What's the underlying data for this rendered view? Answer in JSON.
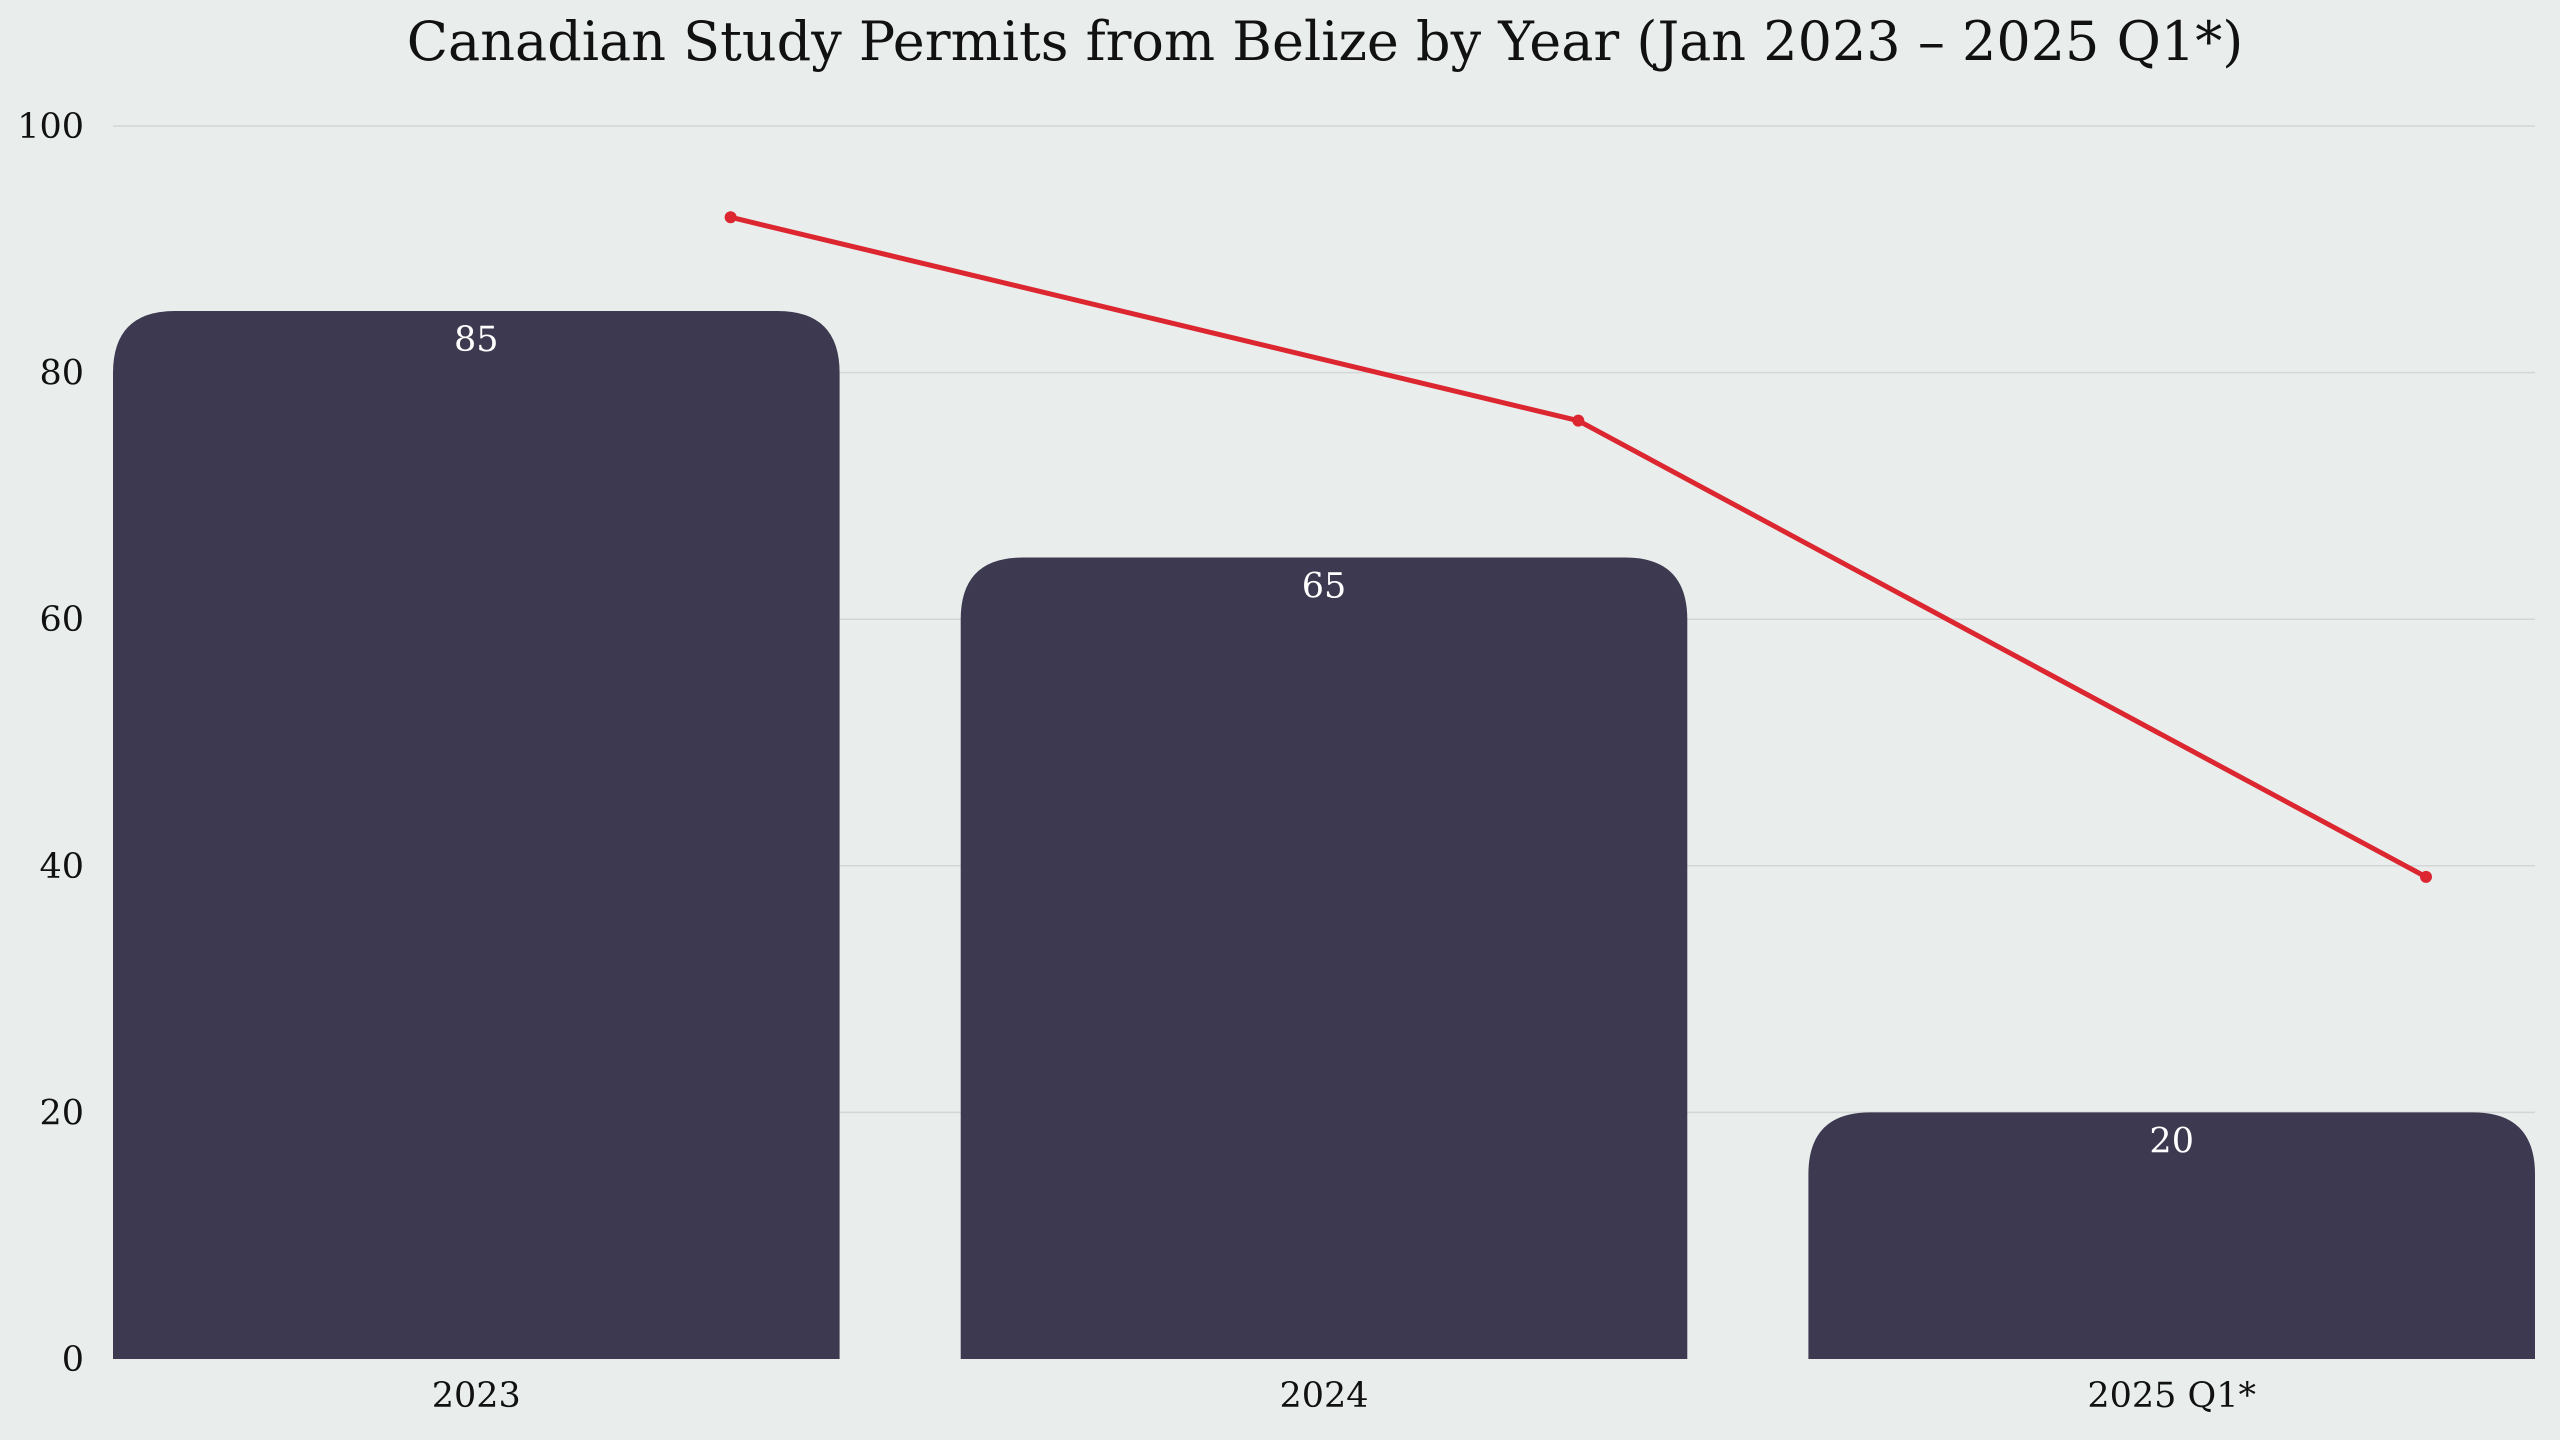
{
  "chart_data": {
    "type": "bar",
    "title": "Canadian Study Permits from Belize by Year (Jan 2023 – 2025 Q1*)",
    "categories": [
      "2023",
      "2024",
      "2025 Q1*"
    ],
    "series": [
      {
        "values": [
          85,
          65,
          20
        ],
        "color": "#3d3950",
        "data_labels": true
      }
    ],
    "trend_line": {
      "values": [
        92.6,
        76.1,
        39.1
      ],
      "color": "#dc2630"
    },
    "ylim": [
      0,
      100
    ],
    "yticks": [
      "0",
      "20",
      "40",
      "60",
      "80",
      "100"
    ],
    "ytick_values": [
      0,
      20,
      40,
      60,
      80,
      100
    ],
    "xlabel": "",
    "ylabel": "",
    "grid": true,
    "legend": "none",
    "background_color": "#e9eeed"
  }
}
